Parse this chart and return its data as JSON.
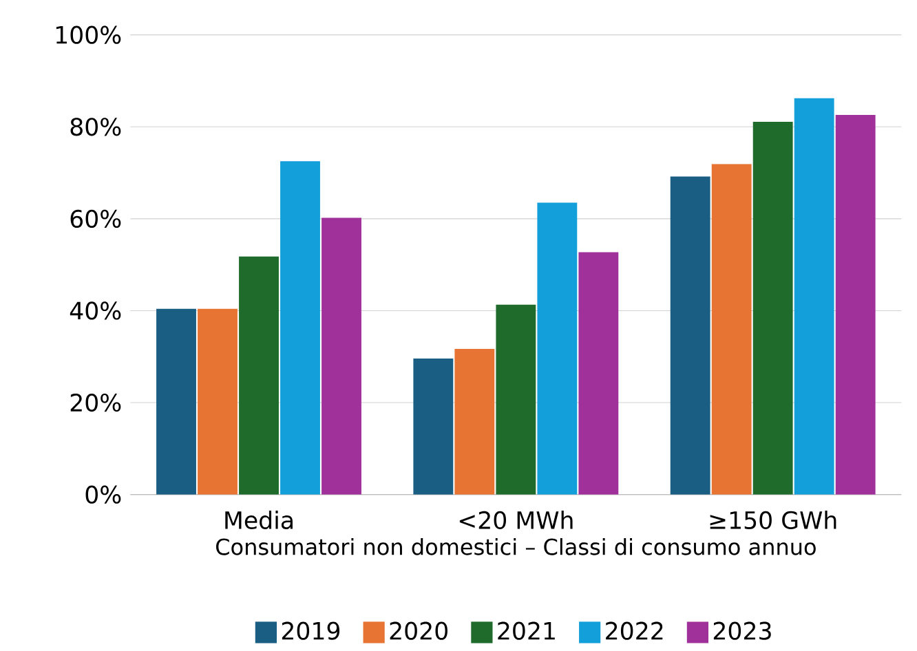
{
  "chart_data": {
    "type": "bar",
    "xlabel": "Consumatori non domestici – Classi di consumo annuo",
    "categories": [
      "Media",
      "<20 MWh",
      "≥150 GWh"
    ],
    "series": [
      {
        "name": "2019",
        "color": "#1a5e84",
        "values": [
          40.4,
          29.6,
          69.2
        ]
      },
      {
        "name": "2020",
        "color": "#e87434",
        "values": [
          40.4,
          31.7,
          71.9
        ]
      },
      {
        "name": "2021",
        "color": "#1e6b2b",
        "values": [
          51.8,
          41.3,
          81.1
        ]
      },
      {
        "name": "2022",
        "color": "#139fd9",
        "values": [
          72.5,
          63.5,
          86.2
        ]
      },
      {
        "name": "2023",
        "color": "#a0309a",
        "values": [
          60.2,
          52.7,
          82.6
        ]
      }
    ],
    "ylim": [
      0,
      100
    ],
    "yticks": [
      {
        "value": 0,
        "label": "0%"
      },
      {
        "value": 20,
        "label": "20%"
      },
      {
        "value": 40,
        "label": "40%"
      },
      {
        "value": 60,
        "label": "60%"
      },
      {
        "value": 80,
        "label": "80%"
      },
      {
        "value": 100,
        "label": "100%"
      }
    ],
    "grid": "y",
    "legend": "bottom"
  }
}
